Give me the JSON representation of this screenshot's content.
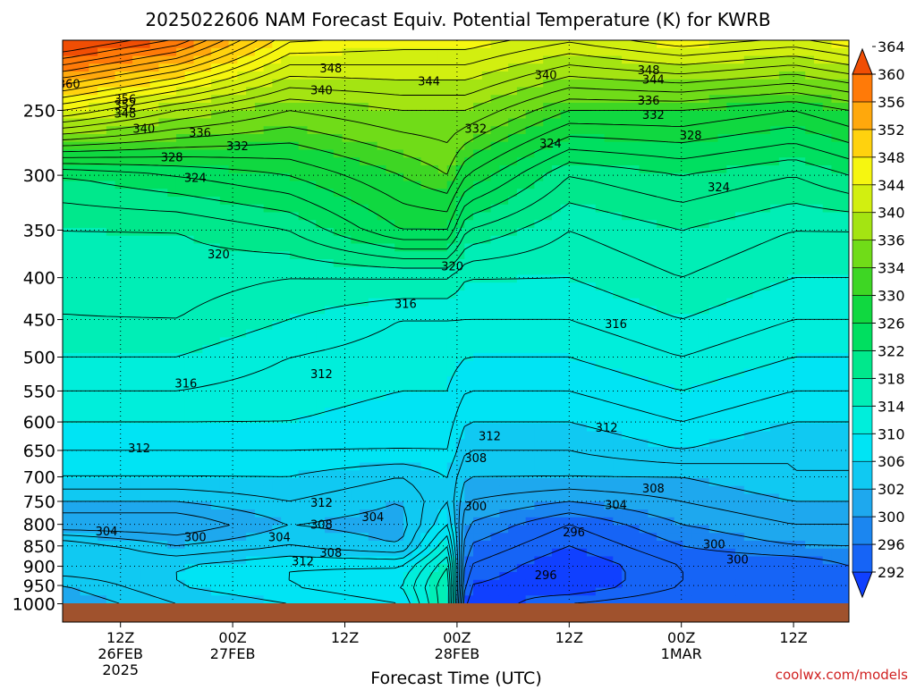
{
  "chart_data": {
    "type": "heatmap",
    "title": "2025022606 NAM Forecast Equiv. Potential Temperature (K) for KWRB",
    "xlabel": "Forecast Time (UTC)",
    "ylabel": "",
    "credit": "coolwx.com/models",
    "y_scale": "pressure-log-inverted",
    "ylim": [
      1000,
      200
    ],
    "y_ticks": [
      250,
      300,
      350,
      400,
      450,
      500,
      550,
      600,
      650,
      700,
      750,
      800,
      850,
      900,
      950,
      1000
    ],
    "xlim": [
      0,
      84
    ],
    "x_ticks": [
      {
        "hour": 6,
        "lines": [
          "12Z",
          "26FEB",
          "2025"
        ]
      },
      {
        "hour": 18,
        "lines": [
          "00Z",
          "27FEB"
        ]
      },
      {
        "hour": 30,
        "lines": [
          "12Z"
        ]
      },
      {
        "hour": 42,
        "lines": [
          "00Z",
          "28FEB"
        ]
      },
      {
        "hour": 54,
        "lines": [
          "12Z"
        ]
      },
      {
        "hour": 66,
        "lines": [
          "00Z",
          "1MAR"
        ]
      },
      {
        "hour": 78,
        "lines": [
          "12Z"
        ]
      }
    ],
    "grid": "dotted",
    "colorbar": {
      "placement": "right",
      "levels": [
        292,
        296,
        300,
        302,
        306,
        310,
        314,
        318,
        322,
        326,
        330,
        334,
        336,
        340,
        344,
        348,
        352,
        356,
        360,
        364
      ],
      "colors": [
        "#1040ff",
        "#1664f6",
        "#1b86f0",
        "#1ea8ee",
        "#10c9f2",
        "#00e4f4",
        "#00eedb",
        "#00eeb6",
        "#00e88c",
        "#00df60",
        "#10d840",
        "#3ed624",
        "#70dc18",
        "#a4e412",
        "#d2ef10",
        "#f6f610",
        "#ffd20e",
        "#ffa80c",
        "#ff7a08",
        "#f04e04"
      ]
    },
    "terrain_color": "#a0522d",
    "profiles": [
      {
        "hour": 0,
        "theta_e": [
          [
            1000,
            304
          ],
          [
            950,
            306
          ],
          [
            900,
            310
          ],
          [
            850,
            310
          ],
          [
            800,
            302
          ],
          [
            750,
            306
          ],
          [
            700,
            310
          ],
          [
            650,
            312
          ],
          [
            600,
            314
          ],
          [
            550,
            316
          ],
          [
            500,
            318
          ],
          [
            450,
            320
          ],
          [
            400,
            320
          ],
          [
            350,
            322
          ],
          [
            300,
            326
          ],
          [
            250,
            348
          ],
          [
            220,
            362
          ]
        ]
      },
      {
        "hour": 12,
        "theta_e": [
          [
            1000,
            308
          ],
          [
            950,
            310
          ],
          [
            900,
            310
          ],
          [
            850,
            306
          ],
          [
            800,
            302
          ],
          [
            750,
            306
          ],
          [
            700,
            310
          ],
          [
            650,
            312
          ],
          [
            600,
            314
          ],
          [
            550,
            316
          ],
          [
            500,
            318
          ],
          [
            450,
            320
          ],
          [
            400,
            321
          ],
          [
            350,
            322
          ],
          [
            300,
            328
          ],
          [
            250,
            342
          ],
          [
            220,
            356
          ]
        ]
      },
      {
        "hour": 24,
        "theta_e": [
          [
            1000,
            310
          ],
          [
            950,
            312
          ],
          [
            900,
            312
          ],
          [
            850,
            308
          ],
          [
            800,
            306
          ],
          [
            750,
            308
          ],
          [
            700,
            310
          ],
          [
            650,
            312
          ],
          [
            600,
            314
          ],
          [
            550,
            315
          ],
          [
            500,
            316
          ],
          [
            450,
            318
          ],
          [
            400,
            320
          ],
          [
            350,
            324
          ],
          [
            300,
            330
          ],
          [
            250,
            338
          ],
          [
            220,
            346
          ]
        ]
      },
      {
        "hour": 36,
        "theta_e": [
          [
            1000,
            312
          ],
          [
            950,
            314
          ],
          [
            900,
            312
          ],
          [
            850,
            306
          ],
          [
            800,
            305
          ],
          [
            750,
            306
          ],
          [
            700,
            308
          ],
          [
            650,
            312
          ],
          [
            600,
            313
          ],
          [
            550,
            314
          ],
          [
            500,
            315
          ],
          [
            450,
            316
          ],
          [
            400,
            320
          ],
          [
            350,
            330
          ],
          [
            300,
            334
          ],
          [
            250,
            340
          ],
          [
            220,
            346
          ]
        ]
      },
      {
        "hour": 41,
        "theta_e": [
          [
            1000,
            322
          ],
          [
            950,
            322
          ],
          [
            900,
            320
          ],
          [
            850,
            316
          ],
          [
            800,
            312
          ],
          [
            750,
            310
          ],
          [
            700,
            310
          ],
          [
            650,
            312
          ],
          [
            600,
            313
          ],
          [
            550,
            314
          ],
          [
            500,
            315
          ],
          [
            450,
            316
          ],
          [
            400,
            320
          ],
          [
            350,
            330
          ],
          [
            300,
            336
          ],
          [
            250,
            340
          ],
          [
            220,
            346
          ]
        ]
      },
      {
        "hour": 43,
        "theta_e": [
          [
            1000,
            294
          ],
          [
            950,
            296
          ],
          [
            900,
            298
          ],
          [
            850,
            300
          ],
          [
            800,
            302
          ],
          [
            750,
            304
          ],
          [
            700,
            306
          ],
          [
            650,
            308
          ],
          [
            600,
            310
          ],
          [
            550,
            312
          ],
          [
            500,
            314
          ],
          [
            450,
            316
          ],
          [
            400,
            318
          ],
          [
            350,
            324
          ],
          [
            300,
            332
          ],
          [
            250,
            340
          ],
          [
            220,
            346
          ]
        ]
      },
      {
        "hour": 54,
        "theta_e": [
          [
            1000,
            298
          ],
          [
            950,
            294
          ],
          [
            900,
            294
          ],
          [
            850,
            296
          ],
          [
            800,
            298
          ],
          [
            750,
            302
          ],
          [
            700,
            306
          ],
          [
            650,
            308
          ],
          [
            600,
            310
          ],
          [
            550,
            312
          ],
          [
            500,
            314
          ],
          [
            450,
            316
          ],
          [
            400,
            318
          ],
          [
            350,
            320
          ],
          [
            300,
            324
          ],
          [
            250,
            334
          ],
          [
            220,
            342
          ]
        ]
      },
      {
        "hour": 66,
        "theta_e": [
          [
            1000,
            300
          ],
          [
            950,
            298
          ],
          [
            900,
            298
          ],
          [
            850,
            300
          ],
          [
            800,
            302
          ],
          [
            750,
            304
          ],
          [
            700,
            306
          ],
          [
            650,
            310
          ],
          [
            600,
            312
          ],
          [
            550,
            314
          ],
          [
            500,
            316
          ],
          [
            450,
            318
          ],
          [
            400,
            320
          ],
          [
            350,
            322
          ],
          [
            300,
            326
          ],
          [
            250,
            334
          ],
          [
            220,
            344
          ]
        ]
      },
      {
        "hour": 78,
        "theta_e": [
          [
            1000,
            300
          ],
          [
            950,
            298
          ],
          [
            900,
            298
          ],
          [
            850,
            302
          ],
          [
            800,
            304
          ],
          [
            750,
            306
          ],
          [
            700,
            308
          ],
          [
            650,
            308
          ],
          [
            600,
            310
          ],
          [
            550,
            312
          ],
          [
            500,
            314
          ],
          [
            450,
            316
          ],
          [
            400,
            318
          ],
          [
            350,
            320
          ],
          [
            300,
            324
          ],
          [
            250,
            332
          ],
          [
            220,
            342
          ]
        ]
      },
      {
        "hour": 84,
        "theta_e": [
          [
            1000,
            300
          ],
          [
            950,
            298
          ],
          [
            900,
            300
          ],
          [
            850,
            302
          ],
          [
            800,
            304
          ],
          [
            750,
            306
          ],
          [
            700,
            308
          ],
          [
            650,
            308
          ],
          [
            600,
            310
          ],
          [
            550,
            312
          ],
          [
            500,
            314
          ],
          [
            450,
            316
          ],
          [
            400,
            318
          ],
          [
            350,
            320
          ],
          [
            300,
            326
          ],
          [
            250,
            334
          ],
          [
            220,
            344
          ]
        ]
      }
    ],
    "contour_labels": [
      {
        "value": "360",
        "hour": 0.5,
        "p": 232
      },
      {
        "value": "356",
        "hour": 6.5,
        "p": 242
      },
      {
        "value": "352",
        "hour": 6.5,
        "p": 246
      },
      {
        "value": "348",
        "hour": 6.5,
        "p": 252
      },
      {
        "value": "340",
        "hour": 8.5,
        "p": 263
      },
      {
        "value": "336",
        "hour": 14.5,
        "p": 266
      },
      {
        "value": "332",
        "hour": 18.5,
        "p": 276
      },
      {
        "value": "328",
        "hour": 11.5,
        "p": 285
      },
      {
        "value": "324",
        "hour": 14,
        "p": 302
      },
      {
        "value": "348",
        "hour": 28.5,
        "p": 222
      },
      {
        "value": "340",
        "hour": 27.5,
        "p": 236
      },
      {
        "value": "344",
        "hour": 39,
        "p": 230
      },
      {
        "value": "340",
        "hour": 51.5,
        "p": 226
      },
      {
        "value": "348",
        "hour": 62.5,
        "p": 223
      },
      {
        "value": "344",
        "hour": 63,
        "p": 229
      },
      {
        "value": "332",
        "hour": 44,
        "p": 263
      },
      {
        "value": "324",
        "hour": 52,
        "p": 274
      },
      {
        "value": "336",
        "hour": 62.5,
        "p": 243
      },
      {
        "value": "332",
        "hour": 63,
        "p": 253
      },
      {
        "value": "328",
        "hour": 67,
        "p": 268
      },
      {
        "value": "324",
        "hour": 70,
        "p": 310
      },
      {
        "value": "320",
        "hour": 16.5,
        "p": 374
      },
      {
        "value": "320",
        "hour": 41.5,
        "p": 387
      },
      {
        "value": "316",
        "hour": 36.5,
        "p": 430
      },
      {
        "value": "316",
        "hour": 59,
        "p": 455
      },
      {
        "value": "316",
        "hour": 13,
        "p": 538
      },
      {
        "value": "312",
        "hour": 27.5,
        "p": 524
      },
      {
        "value": "312",
        "hour": 45.5,
        "p": 624
      },
      {
        "value": "312",
        "hour": 58,
        "p": 609
      },
      {
        "value": "312",
        "hour": 8,
        "p": 645
      },
      {
        "value": "308",
        "hour": 44,
        "p": 663
      },
      {
        "value": "308",
        "hour": 63,
        "p": 722
      },
      {
        "value": "300",
        "hour": 44,
        "p": 760
      },
      {
        "value": "304",
        "hour": 59,
        "p": 757
      },
      {
        "value": "312",
        "hour": 27.5,
        "p": 752
      },
      {
        "value": "304",
        "hour": 33,
        "p": 783
      },
      {
        "value": "308",
        "hour": 27.5,
        "p": 800
      },
      {
        "value": "304",
        "hour": 4.5,
        "p": 815
      },
      {
        "value": "300",
        "hour": 14,
        "p": 828
      },
      {
        "value": "304",
        "hour": 23,
        "p": 828
      },
      {
        "value": "308",
        "hour": 28.5,
        "p": 866
      },
      {
        "value": "312",
        "hour": 25.5,
        "p": 886
      },
      {
        "value": "296",
        "hour": 54.5,
        "p": 817
      },
      {
        "value": "300",
        "hour": 69.5,
        "p": 845
      },
      {
        "value": "300",
        "hour": 72,
        "p": 882
      },
      {
        "value": "296",
        "hour": 51.5,
        "p": 922
      }
    ]
  }
}
